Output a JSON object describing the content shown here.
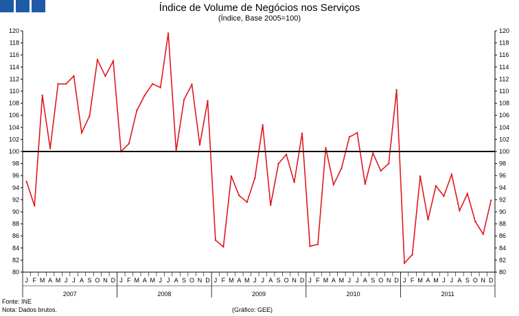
{
  "header": {
    "title": "Índice de Volume de Negócios nos Serviços",
    "subtitle": "(Índice, Base 2005=100)"
  },
  "footer": {
    "source": "Fonte: INE",
    "note": "Nota: Dados brutos.",
    "credit": "(Gráfico: GEE)"
  },
  "colors": {
    "series": "#e0161b",
    "baseline": "#000000",
    "logo": "#1f5aa6"
  },
  "chart_data": {
    "type": "line",
    "title": "Índice de Volume de Negócios nos Serviços",
    "subtitle": "(Índice, Base 2005=100)",
    "ylim": [
      80,
      120
    ],
    "yticks": [
      80,
      82,
      84,
      86,
      88,
      90,
      92,
      94,
      96,
      98,
      100,
      102,
      104,
      106,
      108,
      110,
      112,
      114,
      116,
      118,
      120
    ],
    "y_axes": "left and right",
    "grid": false,
    "reference_line": 100,
    "month_labels": [
      "J",
      "F",
      "M",
      "A",
      "M",
      "J",
      "J",
      "A",
      "S",
      "O",
      "N",
      "D"
    ],
    "years": [
      "2007",
      "2008",
      "2009",
      "2010",
      "2011"
    ],
    "values": [
      95.0,
      91.0,
      109.3,
      100.5,
      111.2,
      111.2,
      112.5,
      103.1,
      105.9,
      115.2,
      112.5,
      115.0,
      100.0,
      101.3,
      106.8,
      109.3,
      111.2,
      110.6,
      119.6,
      100.1,
      108.6,
      111.1,
      101.1,
      108.4,
      85.3,
      84.2,
      95.9,
      92.7,
      91.6,
      95.6,
      104.4,
      91.1,
      98.0,
      99.5,
      94.9,
      103.0,
      84.3,
      84.6,
      100.6,
      94.5,
      97.2,
      102.4,
      103.1,
      94.6,
      99.7,
      96.8,
      98.0,
      110.2,
      81.5,
      82.9,
      95.9,
      88.7,
      94.3,
      92.6,
      96.2,
      90.2,
      93.0,
      88.4,
      86.3,
      91.9
    ]
  }
}
